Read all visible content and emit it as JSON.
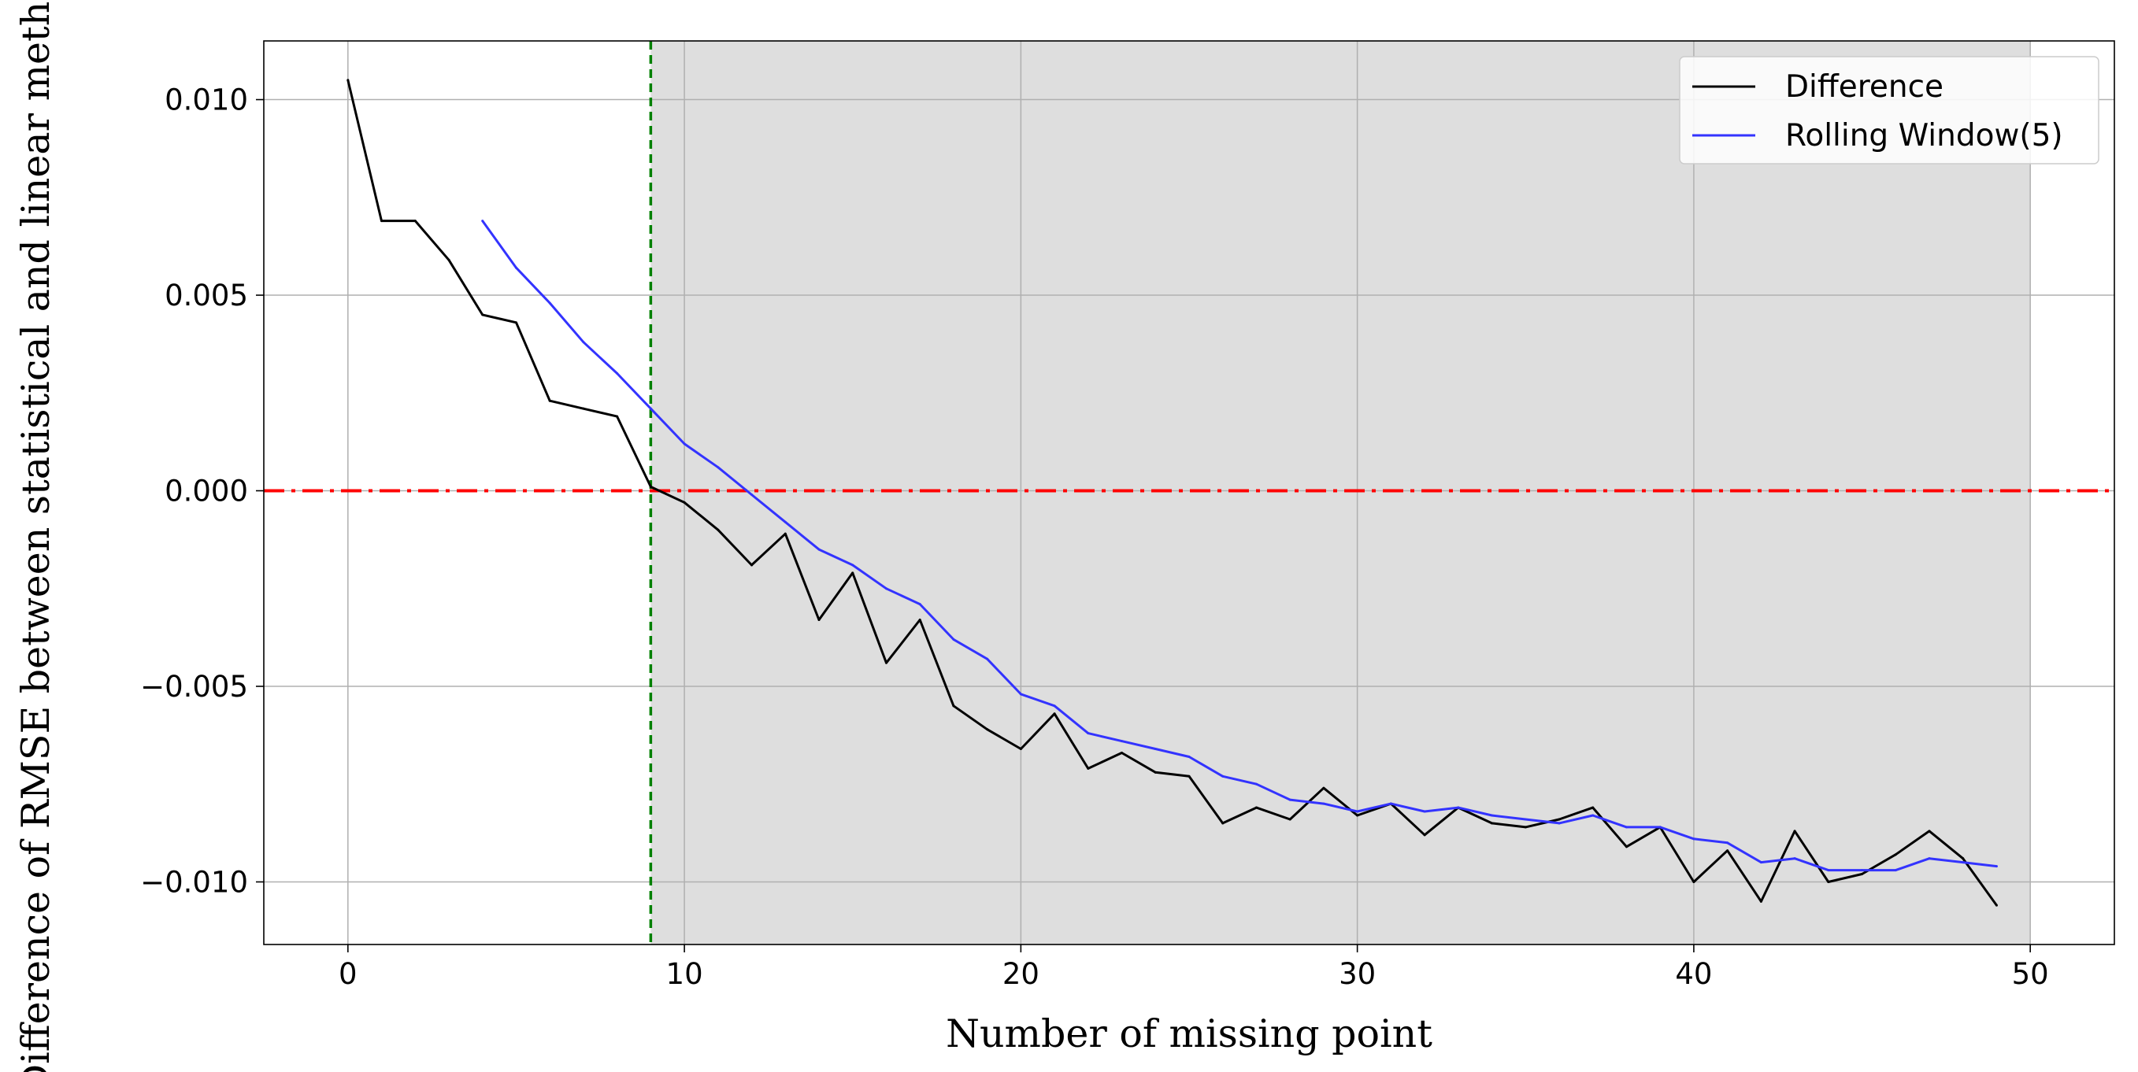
{
  "chart_data": {
    "type": "line",
    "title": "",
    "xlabel": "Number of missing point",
    "ylabel": "Difference of RMSE between statistical and linear method",
    "xlim": [
      -2.5,
      52.5
    ],
    "ylim": [
      -0.0116,
      0.0115
    ],
    "x_ticks": [
      0,
      10,
      20,
      30,
      40,
      50
    ],
    "x_tick_labels": [
      "0",
      "10",
      "20",
      "30",
      "40",
      "50"
    ],
    "y_ticks": [
      0.01,
      0.005,
      0.0,
      -0.005,
      -0.01
    ],
    "y_tick_labels": [
      "0.010",
      "0.005",
      "0.000",
      "−0.005",
      "−0.010"
    ],
    "grid": true,
    "legend_position": "top-right",
    "shaded_region": {
      "x_start": 9,
      "x_end": 50,
      "color": "#dedede"
    },
    "vertical_line": {
      "x": 9,
      "style": "dashed",
      "color": "#008000"
    },
    "horizontal_line": {
      "y": 0.0,
      "style": "dashdot",
      "color": "#ff0000"
    },
    "series": [
      {
        "name": "Difference",
        "color": "#000000",
        "x": [
          0,
          1,
          2,
          3,
          4,
          5,
          6,
          7,
          8,
          9,
          10,
          11,
          12,
          13,
          14,
          15,
          16,
          17,
          18,
          19,
          20,
          21,
          22,
          23,
          24,
          25,
          26,
          27,
          28,
          29,
          30,
          31,
          32,
          33,
          34,
          35,
          36,
          37,
          38,
          39,
          40,
          41,
          42,
          43,
          44,
          45,
          46,
          47,
          48,
          49
        ],
        "y": [
          0.0105,
          0.0069,
          0.0069,
          0.0059,
          0.0045,
          0.0043,
          0.0023,
          0.0021,
          0.0019,
          0.0001,
          -0.0003,
          -0.001,
          -0.0019,
          -0.0011,
          -0.0033,
          -0.0021,
          -0.0044,
          -0.0033,
          -0.0055,
          -0.0061,
          -0.0066,
          -0.0057,
          -0.0071,
          -0.0067,
          -0.0072,
          -0.0073,
          -0.0085,
          -0.0081,
          -0.0084,
          -0.0076,
          -0.0083,
          -0.008,
          -0.0088,
          -0.0081,
          -0.0085,
          -0.0086,
          -0.0084,
          -0.0081,
          -0.0091,
          -0.0086,
          -0.01,
          -0.0092,
          -0.0105,
          -0.0087,
          -0.01,
          -0.0098,
          -0.0093,
          -0.0087,
          -0.0094,
          -0.0106
        ]
      },
      {
        "name": "Rolling Window(5)",
        "color": "#3333ff",
        "x": [
          4,
          5,
          6,
          7,
          8,
          9,
          10,
          11,
          12,
          13,
          14,
          15,
          16,
          17,
          18,
          19,
          20,
          21,
          22,
          23,
          24,
          25,
          26,
          27,
          28,
          29,
          30,
          31,
          32,
          33,
          34,
          35,
          36,
          37,
          38,
          39,
          40,
          41,
          42,
          43,
          44,
          45,
          46,
          47,
          48,
          49
        ],
        "y": [
          0.0069,
          0.0057,
          0.0048,
          0.0038,
          0.003,
          0.0021,
          0.0012,
          0.0006,
          -0.0001,
          -0.0008,
          -0.0015,
          -0.0019,
          -0.0025,
          -0.0029,
          -0.0038,
          -0.0043,
          -0.0052,
          -0.0055,
          -0.0062,
          -0.0064,
          -0.0066,
          -0.0068,
          -0.0073,
          -0.0075,
          -0.0079,
          -0.008,
          -0.0082,
          -0.008,
          -0.0082,
          -0.0081,
          -0.0083,
          -0.0084,
          -0.0085,
          -0.0083,
          -0.0086,
          -0.0086,
          -0.0089,
          -0.009,
          -0.0095,
          -0.0094,
          -0.0097,
          -0.0097,
          -0.0097,
          -0.0094,
          -0.0095,
          -0.0096
        ]
      }
    ]
  }
}
